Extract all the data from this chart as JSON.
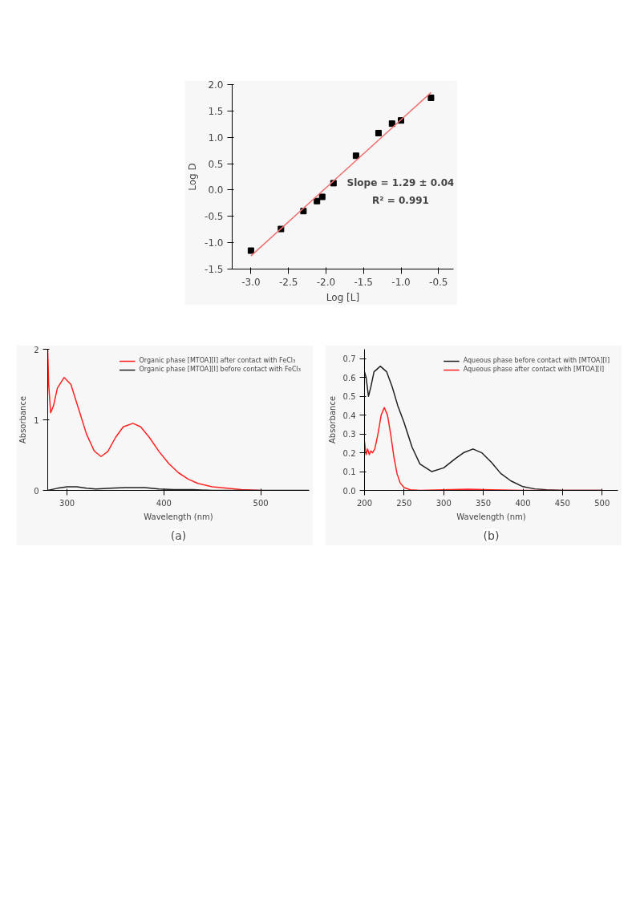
{
  "chart_data": [
    {
      "type": "scatter",
      "xlabel": "Log [L]",
      "ylabel": "Log D",
      "xlim": [
        -3.25,
        -0.3
      ],
      "ylim": [
        -1.5,
        2.0
      ],
      "xticks": [
        {
          "value": -3,
          "label": "-3.0"
        },
        -2.5,
        {
          "value": -2,
          "label": "-2.0"
        },
        -1.5,
        {
          "value": -1,
          "label": "-1.0"
        },
        -0.5
      ],
      "yticks": [
        -1.5,
        {
          "value": -1,
          "label": "-1.0"
        },
        -0.5,
        {
          "value": 0,
          "label": "0.0"
        },
        0.5,
        {
          "value": 1,
          "label": "1.0"
        },
        1.5,
        {
          "value": 2,
          "label": "2.0"
        }
      ],
      "grid": false,
      "legend": false,
      "marker": "square",
      "x": [
        -3.0,
        -2.6,
        -2.3,
        -2.12,
        -2.05,
        -1.9,
        -1.6,
        -1.3,
        -1.12,
        -1.0,
        -0.6
      ],
      "series": [
        {
          "type": "scatter",
          "color": "#000000",
          "values": [
            -1.15,
            -0.74,
            -0.4,
            -0.21,
            -0.13,
            0.13,
            0.65,
            1.08,
            1.26,
            1.32,
            1.75
          ]
        },
        {
          "type": "line",
          "marker": "none",
          "color": "#f07070",
          "x": [
            -3.0,
            -0.6
          ],
          "values": [
            -1.25,
            1.85
          ]
        }
      ],
      "annotations": [
        "Slope = 1.29 ± 0.04",
        "R² = 0.991"
      ]
    },
    {
      "type": "line",
      "xlabel": "Wavelength (nm)",
      "ylabel": "Absorbance",
      "xlim": [
        280,
        550
      ],
      "ylim": [
        0,
        2
      ],
      "xticks": [
        300,
        400,
        500
      ],
      "yticks": [
        0,
        1,
        2
      ],
      "grid": false,
      "legend": "top right",
      "marker": "none",
      "line_style": "solid",
      "series": [
        {
          "name": "Organic phase [MTOA][I] after contact with FeCl₃",
          "color": "#ff2020",
          "x": [
            280,
            281,
            283,
            286,
            290,
            297,
            304,
            312,
            320,
            328,
            335,
            342,
            350,
            358,
            368,
            376,
            385,
            395,
            405,
            415,
            425,
            435,
            450,
            465,
            480,
            500
          ],
          "values": [
            2.0,
            1.5,
            1.1,
            1.2,
            1.45,
            1.6,
            1.5,
            1.15,
            0.8,
            0.56,
            0.48,
            0.55,
            0.75,
            0.9,
            0.95,
            0.9,
            0.75,
            0.55,
            0.38,
            0.25,
            0.16,
            0.1,
            0.05,
            0.03,
            0.01,
            0.0
          ]
        },
        {
          "name": "Organic phase [MTOA][I] before contact with FeCl₃",
          "color": "#202020",
          "x": [
            280,
            290,
            300,
            310,
            320,
            330,
            345,
            360,
            370,
            380,
            395,
            410,
            430,
            450,
            500,
            550
          ],
          "values": [
            0.0,
            0.03,
            0.05,
            0.05,
            0.03,
            0.02,
            0.03,
            0.04,
            0.04,
            0.04,
            0.02,
            0.01,
            0.01,
            0.0,
            0.0,
            0.0
          ]
        }
      ],
      "annotations": [
        "(a)"
      ]
    },
    {
      "type": "line",
      "xlabel": "Wavelength (nm)",
      "ylabel": "Absorbance",
      "xlim": [
        200,
        520
      ],
      "ylim": [
        0,
        0.75
      ],
      "xticks": [
        200,
        250,
        300,
        350,
        400,
        450,
        500
      ],
      "yticks": [
        {
          "value": 0,
          "label": "0.0"
        },
        0.1,
        0.2,
        0.3,
        0.4,
        0.5,
        0.6,
        0.7
      ],
      "grid": false,
      "legend": "top right",
      "marker": "none",
      "line_style": "solid",
      "series": [
        {
          "name": "Aqueous phase before contact with [MTOA][I]",
          "color": "#202020",
          "x": [
            200,
            202,
            205,
            208,
            212,
            220,
            228,
            235,
            242,
            250,
            260,
            270,
            285,
            300,
            315,
            325,
            337,
            348,
            360,
            372,
            385,
            400,
            415,
            430,
            450,
            500
          ],
          "values": [
            0.63,
            0.6,
            0.5,
            0.55,
            0.63,
            0.66,
            0.63,
            0.55,
            0.45,
            0.36,
            0.23,
            0.14,
            0.1,
            0.12,
            0.17,
            0.2,
            0.22,
            0.2,
            0.15,
            0.09,
            0.05,
            0.02,
            0.008,
            0.003,
            0.0,
            0.0
          ]
        },
        {
          "name": "Aqueous phase after contact with [MTOA][I]",
          "color": "#ff2020",
          "x": [
            200,
            202,
            204,
            206,
            208,
            210,
            213,
            217,
            221,
            225,
            229,
            233,
            237,
            241,
            245,
            250,
            258,
            270,
            300,
            330,
            360,
            400,
            450,
            500
          ],
          "values": [
            0.26,
            0.19,
            0.22,
            0.19,
            0.21,
            0.2,
            0.22,
            0.3,
            0.4,
            0.44,
            0.4,
            0.3,
            0.18,
            0.09,
            0.04,
            0.015,
            0.003,
            0.0,
            0.003,
            0.006,
            0.003,
            0.0,
            0.0,
            0.0
          ]
        }
      ],
      "annotations": [
        "(b)"
      ]
    }
  ]
}
